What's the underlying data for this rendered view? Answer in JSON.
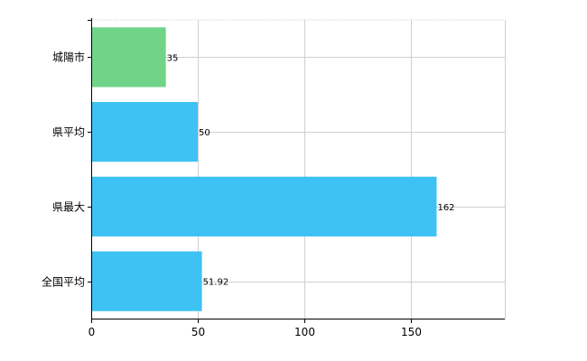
{
  "chart_data": {
    "type": "bar",
    "orientation": "horizontal",
    "categories": [
      "城陽市",
      "県平均",
      "県最大",
      "全国平均"
    ],
    "values": [
      35,
      50,
      162,
      51.92
    ],
    "value_labels": [
      "35",
      "50",
      "162",
      "51.92"
    ],
    "bar_colors": [
      "#6fd487",
      "#3ec1f3",
      "#3ec1f3",
      "#3ec1f3"
    ],
    "xlim": [
      0,
      194
    ],
    "x_ticks": [
      0,
      50,
      100,
      150
    ],
    "x_tick_labels": [
      "0",
      "50",
      "100",
      "150"
    ],
    "grid": true,
    "legend": "none",
    "title": "",
    "xlabel": "",
    "ylabel": ""
  },
  "colors": {
    "axis": "#000000",
    "grid": "#d0d0d0"
  }
}
